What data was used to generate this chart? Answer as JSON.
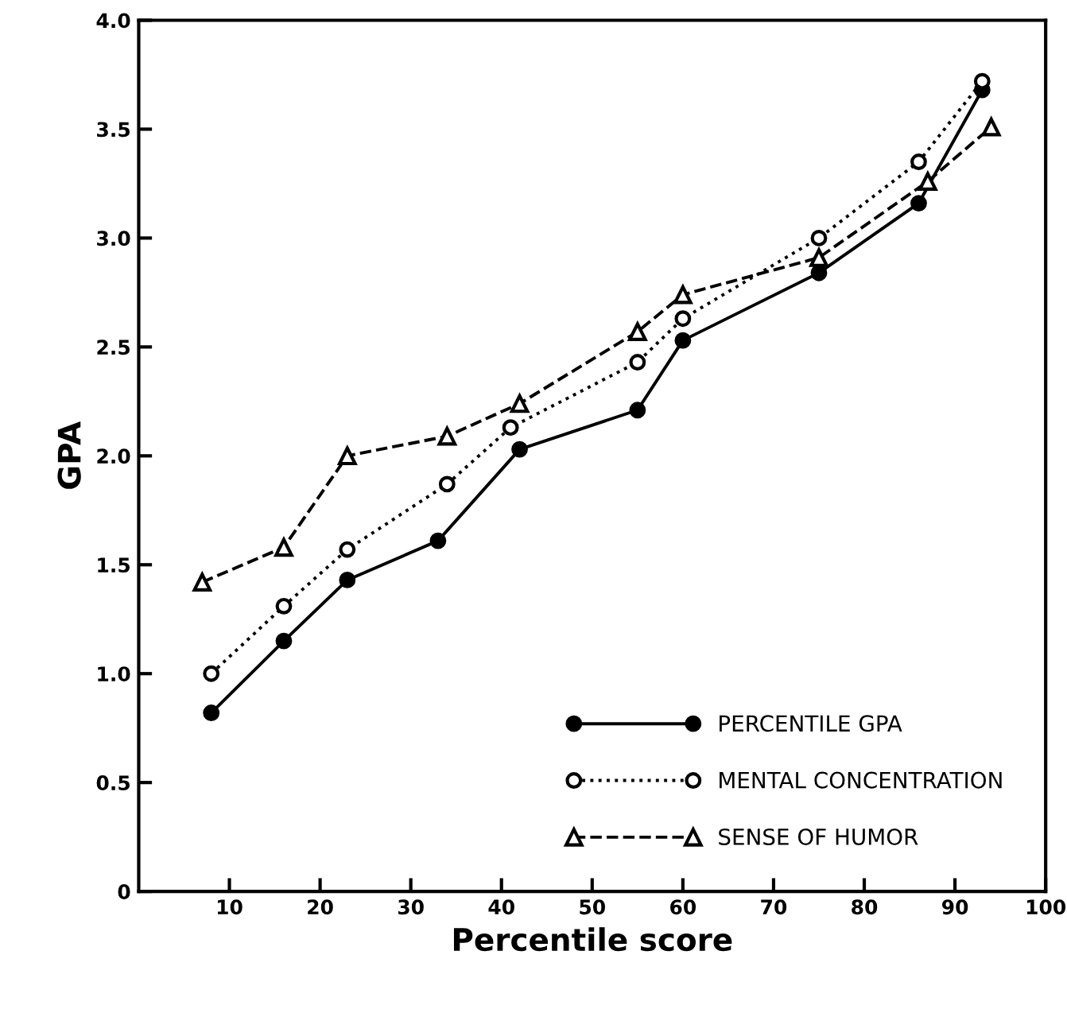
{
  "chart_data": {
    "type": "line",
    "xlabel": "Percentile score",
    "ylabel": "GPA",
    "xlim": [
      0,
      100
    ],
    "xticks": [
      10,
      20,
      30,
      40,
      50,
      60,
      70,
      80,
      90,
      100
    ],
    "ylim": [
      0,
      4.0
    ],
    "yticks": [
      0,
      {
        "value": 0.5,
        "label": "0.5"
      },
      {
        "value": 1.0,
        "label": "1.0"
      },
      {
        "value": 1.5,
        "label": "1.5"
      },
      {
        "value": 2.0,
        "label": "2.0"
      },
      {
        "value": 2.5,
        "label": "2.5"
      },
      {
        "value": 3.0,
        "label": "3.0"
      },
      {
        "value": 3.5,
        "label": "3.5"
      },
      {
        "value": 4.0,
        "label": "4.0"
      }
    ],
    "grid": false,
    "legend": "bottom right",
    "series": [
      {
        "name": "PERCENTILE GPA",
        "color": "#000000",
        "marker": "circle",
        "line_style": "solid",
        "x": [
          8,
          16,
          23,
          33,
          42,
          55,
          60,
          75,
          86,
          93
        ],
        "values": [
          0.82,
          1.15,
          1.43,
          1.61,
          2.03,
          2.21,
          2.53,
          2.84,
          3.16,
          3.68
        ]
      },
      {
        "name": "MENTAL CONCENTRATION",
        "color": "#000000",
        "marker": "circle",
        "line_style": "dotted",
        "x": [
          8,
          16,
          23,
          34,
          41,
          55,
          60,
          75,
          86,
          93
        ],
        "values": [
          1.0,
          1.31,
          1.57,
          1.87,
          2.13,
          2.43,
          2.63,
          3.0,
          3.35,
          3.72
        ]
      },
      {
        "name": "SENSE OF HUMOR",
        "color": "#000000",
        "marker": "triangle",
        "line_style": "dashed",
        "x": [
          7,
          16,
          23,
          34,
          42,
          55,
          60,
          75,
          87,
          94
        ],
        "values": [
          1.42,
          1.58,
          2.0,
          2.09,
          2.24,
          2.57,
          2.74,
          2.91,
          3.26,
          3.51
        ]
      }
    ]
  }
}
